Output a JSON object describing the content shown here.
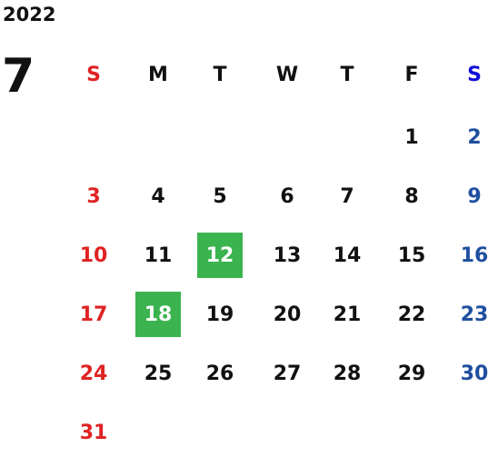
{
  "year": "2022",
  "month": "7",
  "weekdays": [
    "S",
    "M",
    "T",
    "W",
    "T",
    "F",
    "S"
  ],
  "weeks": [
    [
      null,
      null,
      null,
      null,
      null,
      "1",
      "2"
    ],
    [
      "3",
      "4",
      "5",
      "6",
      "7",
      "8",
      "9"
    ],
    [
      "10",
      "11",
      {
        "day": "12",
        "highlighted": true
      },
      "13",
      "14",
      "15",
      "16"
    ],
    [
      "17",
      {
        "day": "18",
        "highlighted": true
      },
      "19",
      "20",
      "21",
      "22",
      "23"
    ],
    [
      "24",
      "25",
      "26",
      "27",
      "28",
      "29",
      "30"
    ],
    [
      "31",
      null,
      null,
      null,
      null,
      null,
      null
    ]
  ],
  "sunday_color": "#e02323",
  "saturday_header_color": "#1010d8",
  "saturday_color": "#1f4f9f",
  "highlight_color": "#3bb34f"
}
